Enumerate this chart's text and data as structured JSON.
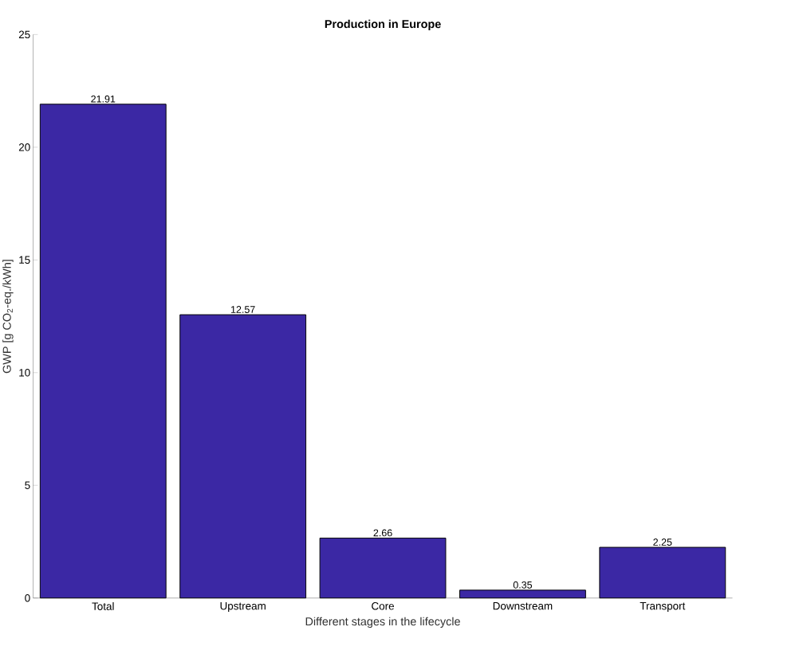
{
  "chart_data": {
    "type": "bar",
    "title": "Production in Europe",
    "xlabel": "Different stages in the lifecycle",
    "ylabel": "GWP [g CO$_{2}$-eq./kWh]",
    "categories": [
      "Total",
      "Upstream",
      "Core",
      "Downstream",
      "Transport"
    ],
    "values": [
      21.91,
      12.57,
      2.66,
      0.35,
      2.25
    ],
    "color": "#3b28a4",
    "ylim": [
      0,
      25
    ],
    "yticks": [
      0,
      5,
      10,
      15,
      20,
      25
    ],
    "data_labels": true
  }
}
